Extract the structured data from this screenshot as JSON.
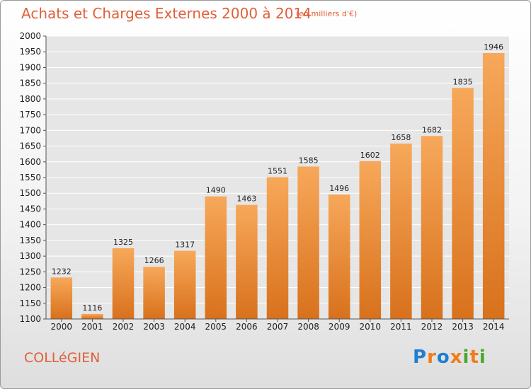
{
  "header": {
    "title": "Achats et Charges Externes 2000 à 2014",
    "unit": "(en milliers d'€)"
  },
  "footer": {
    "place": "COLLéGIEN",
    "brand_letters": [
      "P",
      "r",
      "o",
      "x",
      "i",
      "t",
      "i"
    ],
    "brand_colors": [
      "#1e7fd1",
      "#ef7d1c",
      "#1e7fd1",
      "#ef7d1c",
      "#49a82c",
      "#ef7d1c",
      "#49a82c"
    ]
  },
  "colors": {
    "bar_light": "#f7a85a",
    "bar_dark": "#d8711c",
    "grid": "#ffffff",
    "plot_bg": "#e6e6e6",
    "title": "#e0603a"
  },
  "chart_data": {
    "type": "bar",
    "title": "Achats et Charges Externes 2000 à 2014",
    "subtitle": "(en milliers d'€)",
    "xlabel": "",
    "ylabel": "",
    "categories": [
      "2000",
      "2001",
      "2002",
      "2003",
      "2004",
      "2005",
      "2006",
      "2007",
      "2008",
      "2009",
      "2010",
      "2011",
      "2012",
      "2013",
      "2014"
    ],
    "values": [
      1232,
      1116,
      1325,
      1266,
      1317,
      1490,
      1463,
      1551,
      1585,
      1496,
      1602,
      1658,
      1682,
      1835,
      1946
    ],
    "ylim": [
      1100,
      2000
    ],
    "yticks": [
      1100,
      1150,
      1200,
      1250,
      1300,
      1350,
      1400,
      1450,
      1500,
      1550,
      1600,
      1650,
      1700,
      1750,
      1800,
      1850,
      1900,
      1950,
      2000
    ],
    "grid": true,
    "data_labels": true
  }
}
